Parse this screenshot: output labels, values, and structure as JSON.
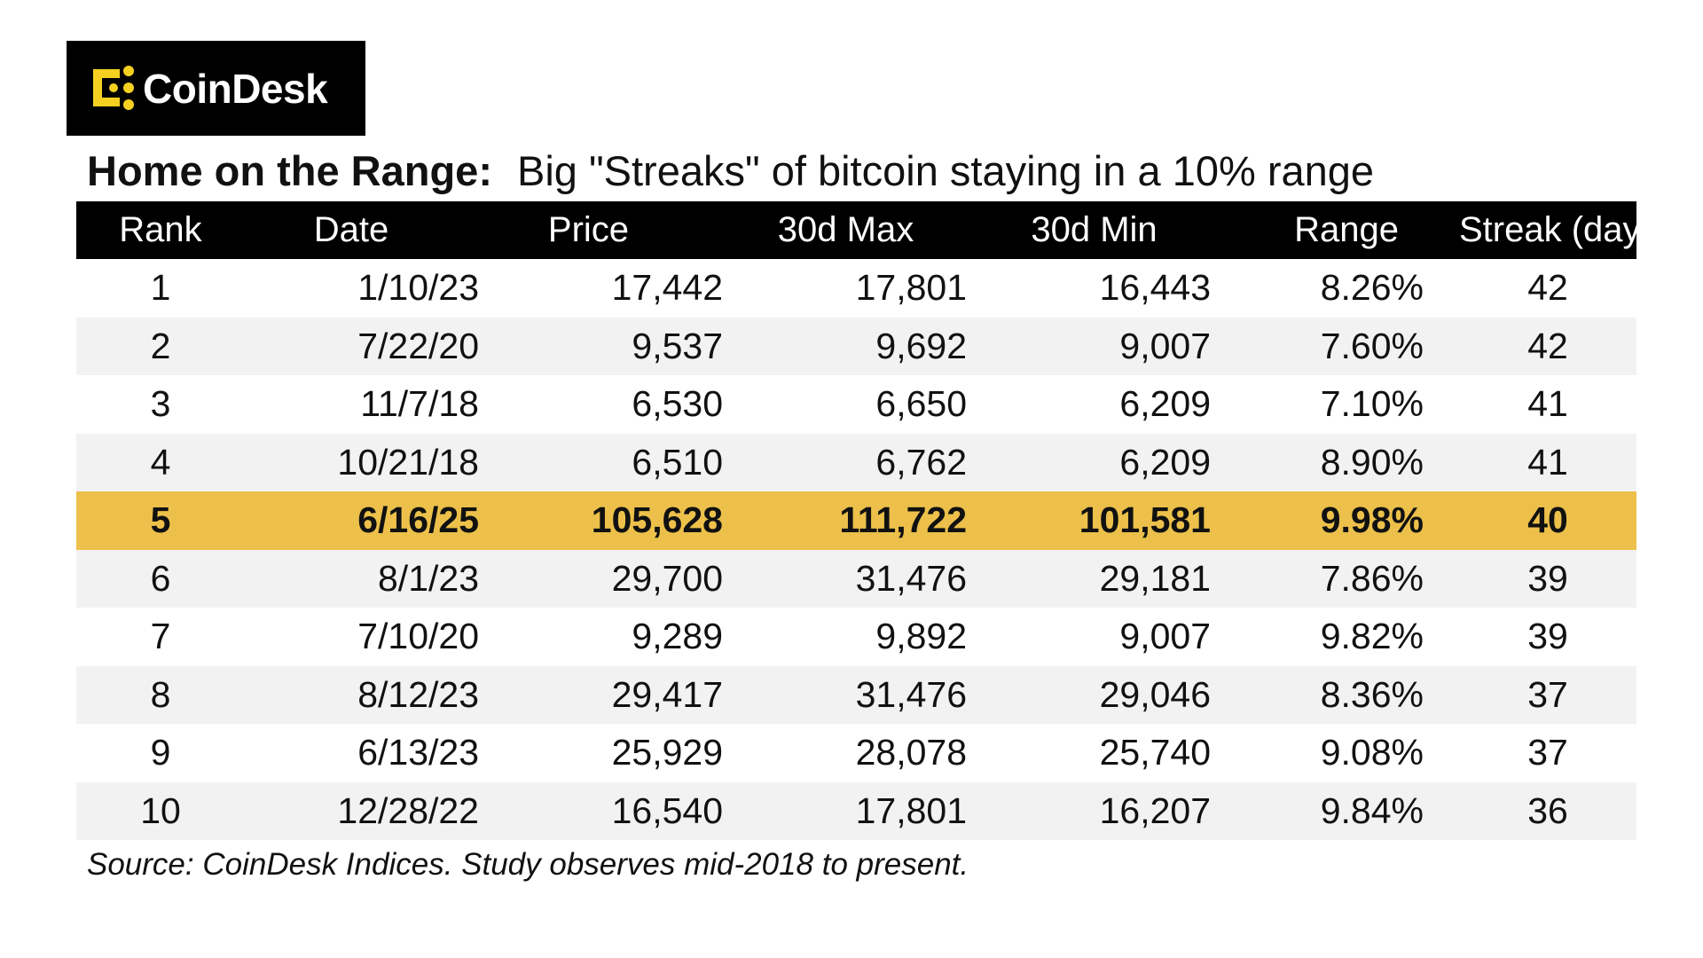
{
  "brand": {
    "name": "CoinDesk",
    "logo_icon": "coindesk-logo-icon",
    "accent_color": "#f5d020"
  },
  "headline": {
    "bold": "Home on the Range:",
    "rest": "Big \"Streaks\" of bitcoin staying in a 10% range"
  },
  "chart_data": {
    "type": "table",
    "columns": [
      "Rank",
      "Date",
      "Price",
      "30d Max",
      "30d Min",
      "Range",
      "Streak (days)"
    ],
    "rows": [
      [
        "1",
        "1/10/23",
        "17,442",
        "17,801",
        "16,443",
        "8.26%",
        "42"
      ],
      [
        "2",
        "7/22/20",
        "9,537",
        "9,692",
        "9,007",
        "7.60%",
        "42"
      ],
      [
        "3",
        "11/7/18",
        "6,530",
        "6,650",
        "6,209",
        "7.10%",
        "41"
      ],
      [
        "4",
        "10/21/18",
        "6,510",
        "6,762",
        "6,209",
        "8.90%",
        "41"
      ],
      [
        "5",
        "6/16/25",
        "105,628",
        "111,722",
        "101,581",
        "9.98%",
        "40"
      ],
      [
        "6",
        "8/1/23",
        "29,700",
        "31,476",
        "29,181",
        "7.86%",
        "39"
      ],
      [
        "7",
        "7/10/20",
        "9,289",
        "9,892",
        "9,007",
        "9.82%",
        "39"
      ],
      [
        "8",
        "8/12/23",
        "29,417",
        "31,476",
        "29,046",
        "8.36%",
        "37"
      ],
      [
        "9",
        "6/13/23",
        "25,929",
        "28,078",
        "25,740",
        "9.08%",
        "37"
      ],
      [
        "10",
        "12/28/22",
        "16,540",
        "17,801",
        "16,207",
        "9.84%",
        "36"
      ]
    ],
    "highlight_rank": "5",
    "colors": {
      "header_bg": "#000000",
      "header_text": "#ffffff",
      "stripe": "#f2f2f2",
      "highlight": "#ecc04a"
    }
  },
  "source": "Source: CoinDesk Indices. Study observes mid-2018 to present."
}
